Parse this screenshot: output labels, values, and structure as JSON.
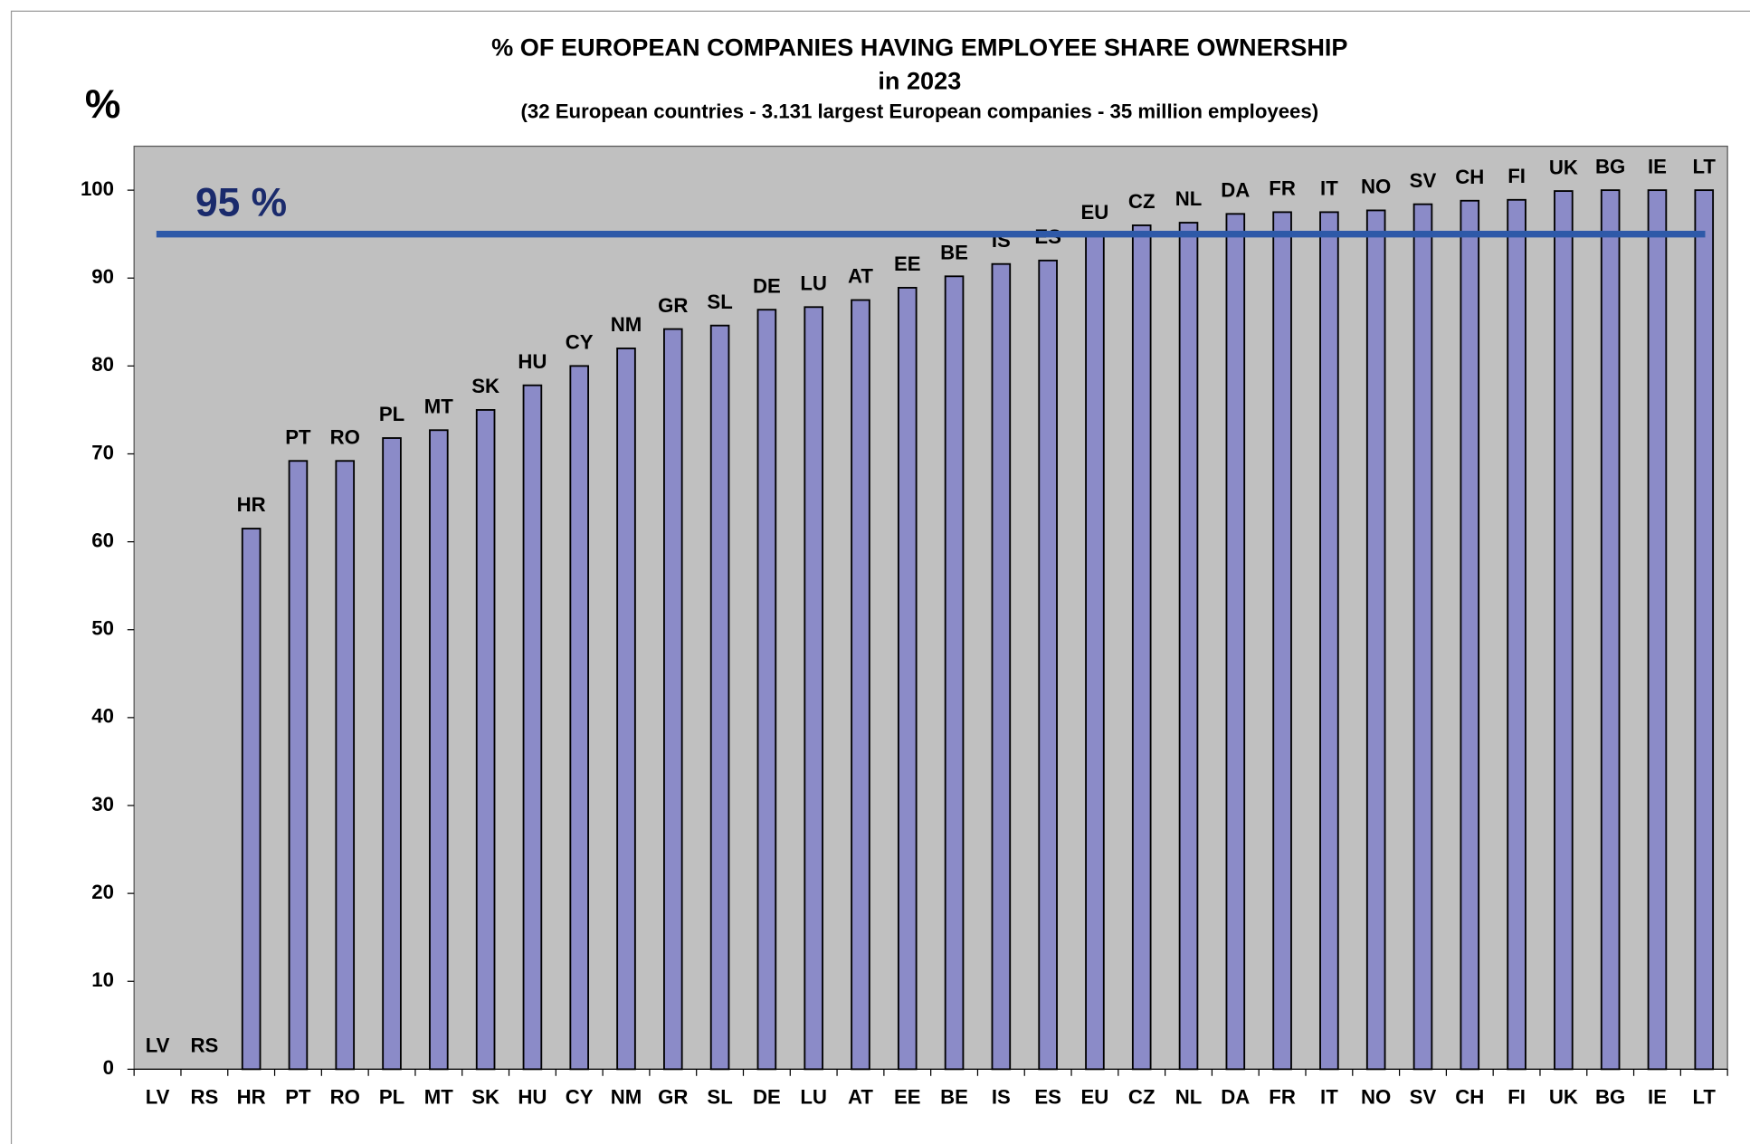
{
  "chart_data": {
    "type": "bar",
    "title": "% OF  EUROPEAN  COMPANIES  HAVING  EMPLOYEE  SHARE OWNERSHIP",
    "subtitle": "in 2023",
    "note": "(32 European countries - 3.131 largest European companies - 35 million employees)",
    "y_axis_label": "%",
    "categories": [
      "LV",
      "RS",
      "HR",
      "PT",
      "RO",
      "PL",
      "MT",
      "SK",
      "HU",
      "CY",
      "NM",
      "GR",
      "SL",
      "DE",
      "LU",
      "AT",
      "EE",
      "BE",
      "IS",
      "ES",
      "EU",
      "CZ",
      "NL",
      "DA",
      "FR",
      "IT",
      "NO",
      "SV",
      "CH",
      "FI",
      "UK",
      "BG",
      "IE",
      "LT"
    ],
    "values": [
      0,
      0,
      61.5,
      69.2,
      69.2,
      71.8,
      72.7,
      75,
      77.8,
      80,
      82,
      84.2,
      84.6,
      86.4,
      86.7,
      87.5,
      88.9,
      90.2,
      91.6,
      92,
      94.8,
      96,
      96.3,
      97.3,
      97.5,
      97.5,
      97.7,
      98.4,
      98.8,
      98.9,
      99.9,
      100,
      100,
      100
    ],
    "color": "#8b8bc8",
    "reference_line": {
      "value": 95,
      "label": "95 %",
      "color": "#2e59a8"
    },
    "ylim": [
      0,
      105
    ],
    "yticks": [
      0,
      10,
      20,
      30,
      40,
      50,
      60,
      70,
      80,
      90,
      100
    ],
    "grid": false
  }
}
